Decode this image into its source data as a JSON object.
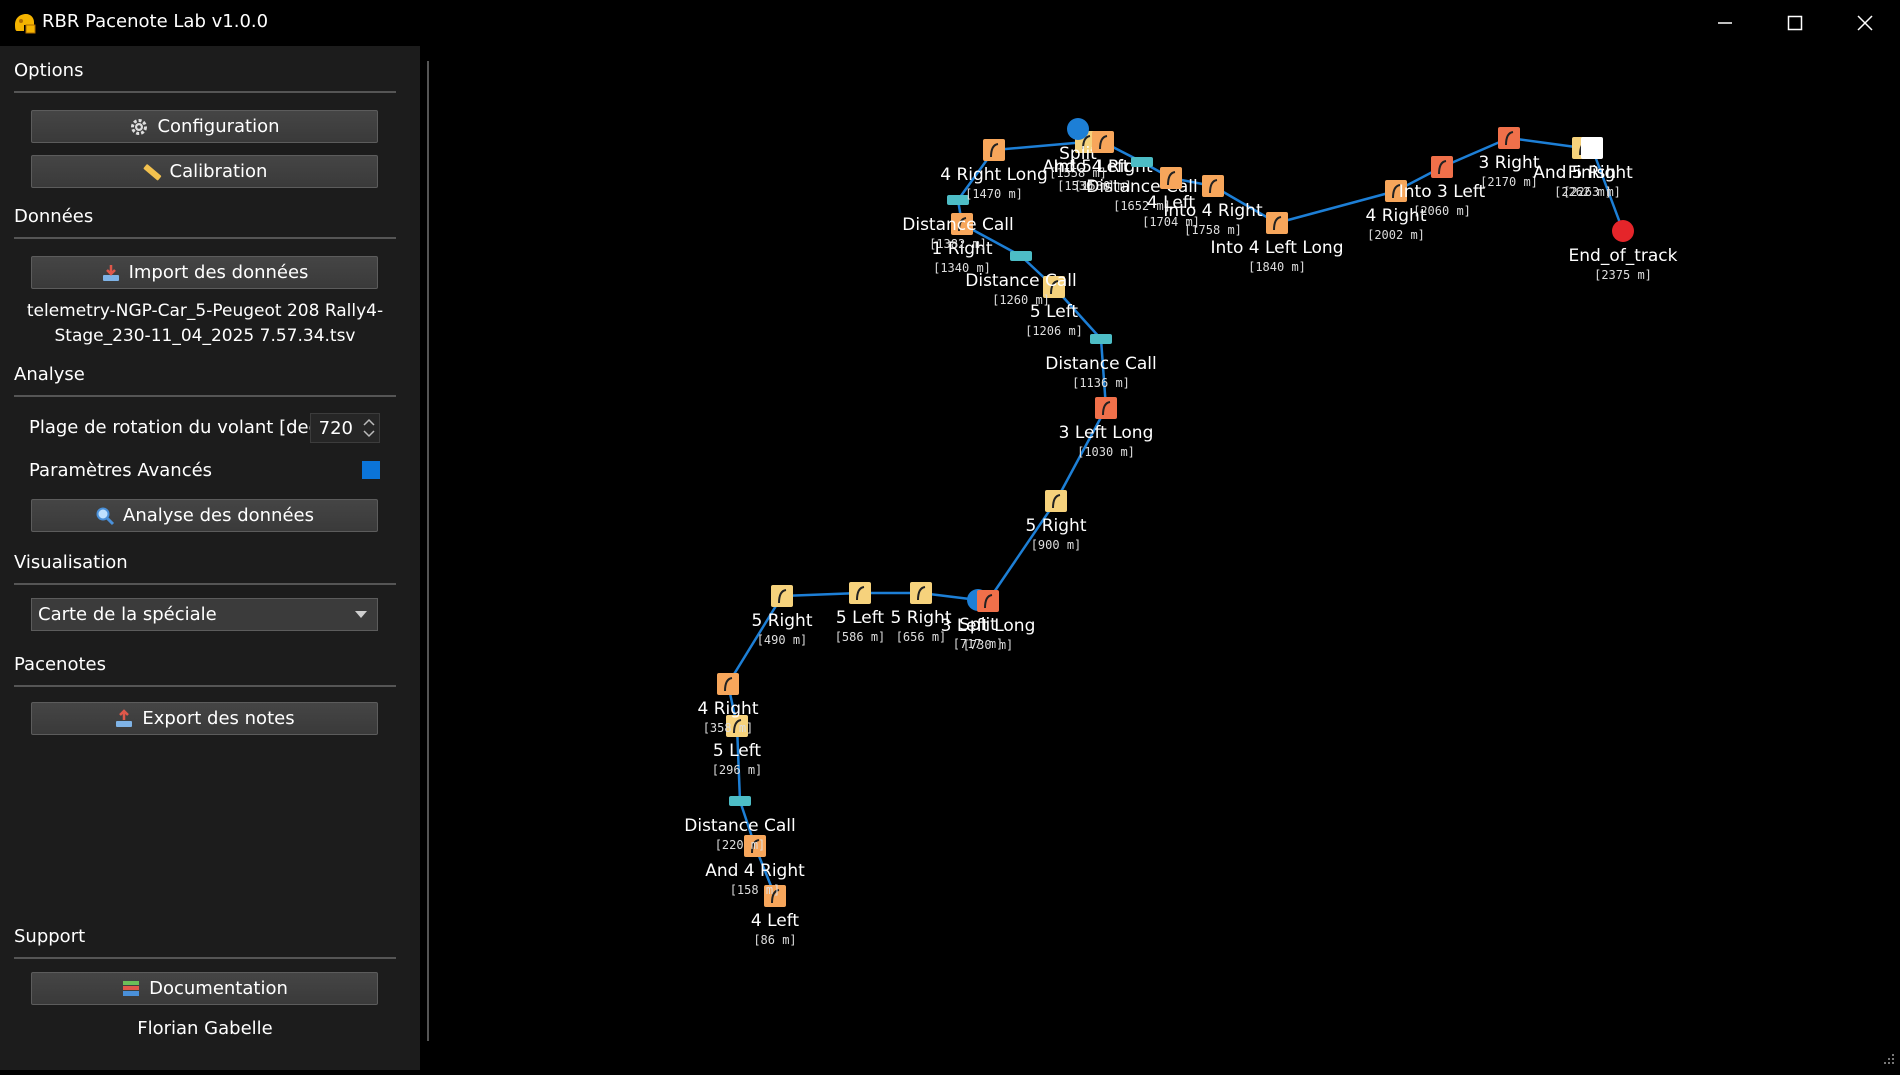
{
  "window": {
    "title": "RBR Pacenote Lab v1.0.0"
  },
  "sidebar": {
    "options": {
      "title": "Options",
      "configuration_label": "Configuration",
      "calibration_label": "Calibration"
    },
    "donnees": {
      "title": "Données",
      "import_label": "Import des données",
      "file_line1": "telemetry-NGP-Car_5-Peugeot 208 Rally4-",
      "file_line2": "Stage_230-11_04_2025 7.57.34.tsv"
    },
    "analyse": {
      "title": "Analyse",
      "wheel_range_label": "Plage de rotation du volant [deg]",
      "wheel_range_value": "720",
      "advanced_label": "Paramètres Avancés",
      "advanced_checked": true,
      "analyse_label": "Analyse des données"
    },
    "visualisation": {
      "title": "Visualisation",
      "selected_view": "Carte de la spéciale"
    },
    "pacenotes": {
      "title": "Pacenotes",
      "export_label": "Export des notes"
    },
    "support": {
      "title": "Support",
      "documentation_label": "Documentation",
      "author": "Florian Gabelle"
    }
  },
  "colors": {
    "accent": "#0b74d8",
    "track": "#1d7fd6",
    "note_light": "#f6d27c",
    "note_medium": "#f7a65b",
    "note_hard": "#f0704a",
    "distance_call": "#4dbdc6",
    "stop": "#e5252a"
  },
  "map": {
    "notes": [
      {
        "label": "4 Left",
        "distance": "[86 m]",
        "icon": "left-turn-icon"
      },
      {
        "label": "And 4 Right",
        "distance": "[158 m]",
        "icon": "right-turn-icon"
      },
      {
        "label": "Distance Call",
        "distance": "[220 m]",
        "icon": "distance-call-icon"
      },
      {
        "label": "5 Left",
        "distance": "[296 m]",
        "icon": "left-turn-icon"
      },
      {
        "label": "4 Right",
        "distance": "[358 m]",
        "icon": "right-turn-icon"
      },
      {
        "label": "5 Right",
        "distance": "[490 m]",
        "icon": "right-turn-icon"
      },
      {
        "label": "5 Left",
        "distance": "[586 m]",
        "icon": "left-turn-icon"
      },
      {
        "label": "5 Right",
        "distance": "[656 m]",
        "icon": "right-turn-icon"
      },
      {
        "label": "Split",
        "distance": "[717 m]",
        "icon": "split-icon"
      },
      {
        "label": "3 Left Long",
        "distance": "[730 m]",
        "icon": "left-turn-icon"
      },
      {
        "label": "5 Right",
        "distance": "[900 m]",
        "icon": "right-turn-icon"
      },
      {
        "label": "3 Left Long",
        "distance": "[1030 m]",
        "icon": "left-turn-icon"
      },
      {
        "label": "Distance Call",
        "distance": "[1136 m]",
        "icon": "distance-call-icon"
      },
      {
        "label": "5 Left",
        "distance": "[1206 m]",
        "icon": "left-turn-icon"
      },
      {
        "label": "Distance Call",
        "distance": "[1260 m]",
        "icon": "distance-call-icon"
      },
      {
        "label": "1 Right",
        "distance": "[1340 m]",
        "icon": "right-turn-icon"
      },
      {
        "label": "Distance Call",
        "distance": "[1382 m]",
        "icon": "distance-call-icon"
      },
      {
        "label": "4 Right Long",
        "distance": "[1470 m]",
        "icon": "right-turn-icon"
      },
      {
        "label": "And 5 Left",
        "distance": "[1530 m]",
        "icon": "left-turn-icon"
      },
      {
        "label": "Split",
        "distance": "[1558 m]",
        "icon": "split-icon"
      },
      {
        "label": "Into 4 Right",
        "distance": "[1580 m]",
        "icon": "right-turn-icon"
      },
      {
        "label": "Distance Call",
        "distance": "[1652 m]",
        "icon": "distance-call-icon"
      },
      {
        "label": "4 Left",
        "distance": "[1704 m]",
        "icon": "left-turn-icon"
      },
      {
        "label": "Into 4 Right",
        "distance": "[1758 m]",
        "icon": "right-turn-icon"
      },
      {
        "label": "Into 4 Left Long",
        "distance": "[1840 m]",
        "icon": "left-turn-icon"
      },
      {
        "label": "4 Right",
        "distance": "[2002 m]",
        "icon": "right-turn-icon"
      },
      {
        "label": "Into 3 Left",
        "distance": "[2060 m]",
        "icon": "left-turn-icon"
      },
      {
        "label": "3 Right",
        "distance": "[2170 m]",
        "icon": "right-turn-icon"
      },
      {
        "label": "And 5 Right",
        "distance": "[2262 m]",
        "icon": "right-turn-icon"
      },
      {
        "label": "Finish",
        "distance": "[2263 m]",
        "icon": "finish-flag-icon"
      },
      {
        "label": "End_of_track",
        "distance": "[2375 m]",
        "icon": "stop-icon"
      }
    ]
  }
}
